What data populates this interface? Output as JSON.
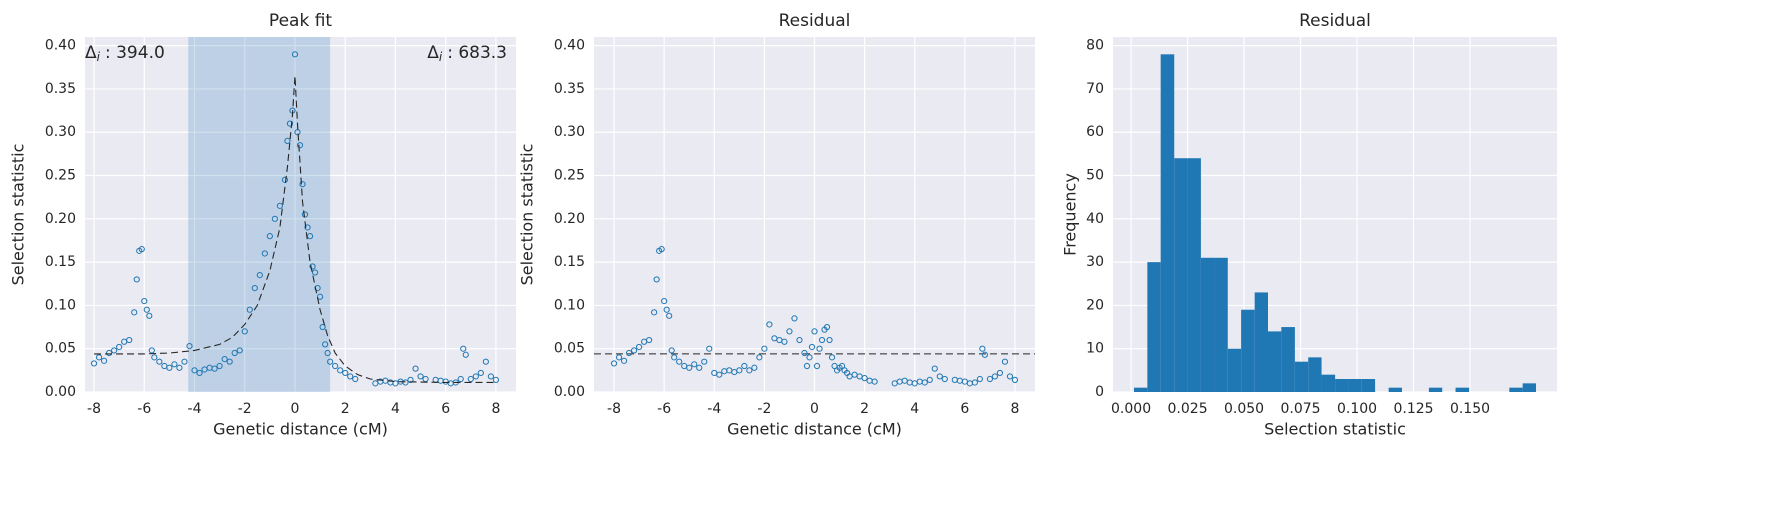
{
  "chart_data": [
    {
      "type": "scatter",
      "title": "Peak fit",
      "xlabel": "Genetic distance (cM)",
      "ylabel": "Selection statistic",
      "xlim": [
        -8.36,
        8.8
      ],
      "ylim": [
        0,
        0.41
      ],
      "xticks": [
        -8,
        -6,
        -4,
        -2,
        0,
        2,
        4,
        6,
        8
      ],
      "yticks": [
        {
          "value": 0,
          "label": "0.00"
        },
        {
          "value": 0.05,
          "label": "0.05"
        },
        {
          "value": 0.1,
          "label": "0.10"
        },
        {
          "value": 0.15,
          "label": "0.15"
        },
        {
          "value": 0.2,
          "label": "0.20"
        },
        {
          "value": 0.25,
          "label": "0.25"
        },
        {
          "value": 0.3,
          "label": "0.30"
        },
        {
          "value": 0.35,
          "label": "0.35"
        },
        {
          "value": 0.4,
          "label": "0.40"
        }
      ],
      "grid": true,
      "color": "#1f77b4",
      "span": [
        -4.25,
        1.4
      ],
      "span_color": "#1f77b4",
      "x": [
        -8,
        -7.8,
        -7.6,
        -7.4,
        -7.2,
        -7,
        -6.8,
        -6.6,
        -6.4,
        -6.3,
        -6.2,
        -6.1,
        -6,
        -5.9,
        -5.8,
        -5.7,
        -5.6,
        -5.4,
        -5.2,
        -5,
        -4.8,
        -4.6,
        -4.4,
        -4.2,
        -4,
        -3.8,
        -3.6,
        -3.4,
        -3.2,
        -3,
        -2.8,
        -2.6,
        -2.4,
        -2.2,
        -2,
        -1.8,
        -1.6,
        -1.4,
        -1.2,
        -1,
        -0.8,
        -0.6,
        -0.4,
        -0.3,
        -0.2,
        -0.1,
        0,
        0.1,
        0.2,
        0.3,
        0.4,
        0.5,
        0.6,
        0.7,
        0.8,
        0.9,
        1,
        1.1,
        1.2,
        1.3,
        1.4,
        1.6,
        1.8,
        2,
        2.2,
        2.4,
        3.2,
        3.4,
        3.6,
        3.8,
        4,
        4.2,
        4.4,
        4.6,
        4.8,
        5,
        5.2,
        5.6,
        5.8,
        6,
        6.2,
        6.4,
        6.6,
        6.7,
        6.8,
        7,
        7.2,
        7.4,
        7.6,
        7.8,
        8
      ],
      "values": [
        0.033,
        0.04,
        0.036,
        0.045,
        0.048,
        0.052,
        0.058,
        0.06,
        0.092,
        0.13,
        0.163,
        0.165,
        0.105,
        0.095,
        0.088,
        0.048,
        0.04,
        0.035,
        0.03,
        0.028,
        0.032,
        0.028,
        0.035,
        0.053,
        0.025,
        0.022,
        0.026,
        0.028,
        0.027,
        0.03,
        0.038,
        0.035,
        0.045,
        0.048,
        0.07,
        0.095,
        0.12,
        0.135,
        0.16,
        0.18,
        0.2,
        0.215,
        0.245,
        0.29,
        0.31,
        0.325,
        0.39,
        0.3,
        0.285,
        0.24,
        0.205,
        0.19,
        0.18,
        0.145,
        0.138,
        0.12,
        0.11,
        0.075,
        0.055,
        0.045,
        0.035,
        0.03,
        0.025,
        0.022,
        0.018,
        0.015,
        0.01,
        0.012,
        0.013,
        0.011,
        0.01,
        0.012,
        0.011,
        0.014,
        0.027,
        0.018,
        0.015,
        0.014,
        0.013,
        0.012,
        0.01,
        0.011,
        0.015,
        0.05,
        0.043,
        0.015,
        0.018,
        0.022,
        0.035,
        0.018,
        0.014
      ],
      "fit": {
        "color": "#262626",
        "x": [
          -8,
          -6,
          -5,
          -4,
          -3,
          -2.5,
          -2,
          -1.5,
          -1,
          -0.6,
          -0.3,
          -0.1,
          0,
          0.1,
          0.3,
          0.6,
          1,
          1.3,
          1.6,
          2,
          2.5,
          3,
          4,
          6,
          8
        ],
        "values": [
          0.044,
          0.044,
          0.045,
          0.048,
          0.055,
          0.063,
          0.078,
          0.1,
          0.14,
          0.19,
          0.26,
          0.32,
          0.365,
          0.31,
          0.22,
          0.15,
          0.095,
          0.065,
          0.045,
          0.03,
          0.02,
          0.015,
          0.012,
          0.011,
          0.011
        ]
      },
      "annotations": [
        {
          "symbol": "Δ",
          "subscript": "i",
          "text": ": 394.0"
        },
        {
          "symbol": "Δ",
          "subscript": "i",
          "text": ": 683.3"
        }
      ]
    },
    {
      "type": "scatter",
      "title": "Residual",
      "xlabel": "Genetic distance (cM)",
      "ylabel": "Selection statistic",
      "xlim": [
        -8.8,
        8.8
      ],
      "ylim": [
        0,
        0.41
      ],
      "xticks": [
        -8,
        -6,
        -4,
        -2,
        0,
        2,
        4,
        6,
        8
      ],
      "yticks": [
        {
          "value": 0,
          "label": "0.00"
        },
        {
          "value": 0.05,
          "label": "0.05"
        },
        {
          "value": 0.1,
          "label": "0.10"
        },
        {
          "value": 0.15,
          "label": "0.15"
        },
        {
          "value": 0.2,
          "label": "0.20"
        },
        {
          "value": 0.25,
          "label": "0.25"
        },
        {
          "value": 0.3,
          "label": "0.30"
        },
        {
          "value": 0.35,
          "label": "0.35"
        },
        {
          "value": 0.4,
          "label": "0.40"
        }
      ],
      "grid": true,
      "color": "#1f77b4",
      "hline": 0.044,
      "x": [
        -8,
        -7.8,
        -7.6,
        -7.4,
        -7.2,
        -7,
        -6.8,
        -6.6,
        -6.4,
        -6.3,
        -6.2,
        -6.1,
        -6,
        -5.9,
        -5.8,
        -5.7,
        -5.6,
        -5.4,
        -5.2,
        -5,
        -4.8,
        -4.6,
        -4.4,
        -4.2,
        -4,
        -3.8,
        -3.6,
        -3.4,
        -3.2,
        -3,
        -2.8,
        -2.6,
        -2.4,
        -2.2,
        -2,
        -1.8,
        -1.6,
        -1.4,
        -1.2,
        -1,
        -0.8,
        -0.6,
        -0.4,
        -0.3,
        -0.2,
        -0.1,
        0,
        0.1,
        0.2,
        0.3,
        0.4,
        0.5,
        0.6,
        0.7,
        0.8,
        0.9,
        1,
        1.1,
        1.2,
        1.3,
        1.4,
        1.6,
        1.8,
        2,
        2.2,
        2.4,
        3.2,
        3.4,
        3.6,
        3.8,
        4,
        4.2,
        4.4,
        4.6,
        4.8,
        5,
        5.2,
        5.6,
        5.8,
        6,
        6.2,
        6.4,
        6.6,
        6.7,
        6.8,
        7,
        7.2,
        7.4,
        7.6,
        7.8,
        8
      ],
      "values": [
        0.033,
        0.04,
        0.036,
        0.045,
        0.048,
        0.052,
        0.058,
        0.06,
        0.092,
        0.13,
        0.163,
        0.165,
        0.105,
        0.095,
        0.088,
        0.048,
        0.04,
        0.035,
        0.03,
        0.028,
        0.032,
        0.028,
        0.035,
        0.05,
        0.022,
        0.02,
        0.024,
        0.025,
        0.023,
        0.025,
        0.03,
        0.025,
        0.028,
        0.04,
        0.05,
        0.078,
        0.062,
        0.06,
        0.058,
        0.07,
        0.085,
        0.06,
        0.045,
        0.03,
        0.04,
        0.052,
        0.07,
        0.03,
        0.05,
        0.06,
        0.072,
        0.075,
        0.06,
        0.04,
        0.03,
        0.025,
        0.028,
        0.03,
        0.025,
        0.022,
        0.018,
        0.02,
        0.018,
        0.016,
        0.013,
        0.012,
        0.01,
        0.012,
        0.013,
        0.011,
        0.01,
        0.012,
        0.011,
        0.014,
        0.027,
        0.018,
        0.015,
        0.014,
        0.013,
        0.012,
        0.01,
        0.011,
        0.015,
        0.05,
        0.043,
        0.015,
        0.018,
        0.022,
        0.035,
        0.018,
        0.014
      ]
    },
    {
      "type": "histogram",
      "title": "Residual",
      "xlabel": "Selection statistic",
      "ylabel": "Frequency",
      "xlim": [
        -0.008,
        0.1885
      ],
      "ylim": [
        0,
        82
      ],
      "xticks": [
        {
          "value": 0,
          "label": "0.000"
        },
        {
          "value": 0.025,
          "label": "0.025"
        },
        {
          "value": 0.05,
          "label": "0.050"
        },
        {
          "value": 0.075,
          "label": "0.075"
        },
        {
          "value": 0.1,
          "label": "0.100"
        },
        {
          "value": 0.125,
          "label": "0.125"
        },
        {
          "value": 0.15,
          "label": "0.150"
        }
      ],
      "yticks": [
        0,
        10,
        20,
        30,
        40,
        50,
        60,
        70,
        80
      ],
      "grid": true,
      "color": "#1f77b4",
      "bins": [
        0.0013,
        0.0072,
        0.0131,
        0.0191,
        0.025,
        0.0309,
        0.0369,
        0.0428,
        0.0487,
        0.0547,
        0.0606,
        0.0665,
        0.0725,
        0.0784,
        0.0843,
        0.0903,
        0.0962,
        0.1021,
        0.108,
        0.114,
        0.1199,
        0.1258,
        0.1318,
        0.1377,
        0.1436,
        0.1496,
        0.1555,
        0.1614,
        0.1674,
        0.1733,
        0.1792
      ],
      "values": [
        1,
        30,
        78,
        54,
        54,
        31,
        31,
        10,
        19,
        23,
        14,
        15,
        7,
        8,
        4,
        3,
        3,
        3,
        0,
        1,
        0,
        0,
        1,
        0,
        1,
        0,
        0,
        0,
        1,
        2
      ]
    }
  ]
}
